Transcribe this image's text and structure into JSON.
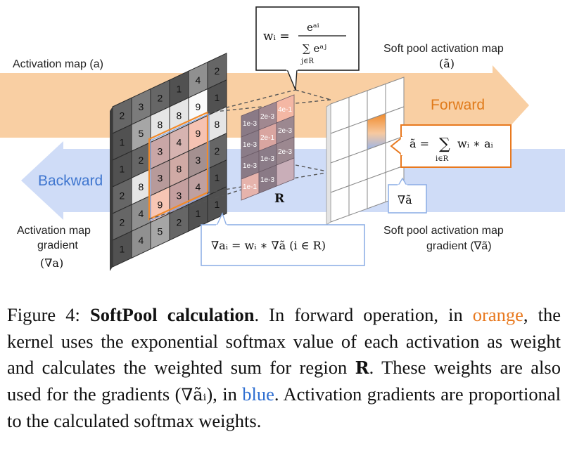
{
  "labels": {
    "activation_map": "Activation map (a)",
    "soft_pool_map": "Soft pool activation map",
    "soft_pool_map_symbol": "(ã)",
    "forward": "Forward",
    "backward": "Backward",
    "act_grad_line1": "Activation map",
    "act_grad_line2": "gradient",
    "act_grad_symbol": "(∇a)",
    "sp_grad_line1": "Soft pool activation map",
    "sp_grad_line2": "gradient (∇ã)",
    "region": "R",
    "grad_tilde": "∇ã"
  },
  "formulas": {
    "weight_lhs": "wᵢ =",
    "weight_num": "eᵃⁱ",
    "weight_den": "∑ eᵃʲ",
    "weight_den_sub": "j∈R",
    "pool_lhs": "ã =",
    "pool_sum": "∑",
    "pool_sub": "i∈R",
    "pool_rhs": "wᵢ ∗ aᵢ",
    "grad": "∇aᵢ = wᵢ ∗ ∇ã (i ∈ R)"
  },
  "activation_grid": [
    [
      "2",
      "3",
      "2",
      "1",
      "4",
      "2"
    ],
    [
      "1",
      "5",
      "8",
      "8",
      "9",
      "1"
    ],
    [
      "1",
      "2",
      "3",
      "4",
      "9",
      "8"
    ],
    [
      "2",
      "8",
      "3",
      "8",
      "3",
      "2"
    ],
    [
      "2",
      "4",
      "9",
      "3",
      "4",
      "1"
    ],
    [
      "1",
      "4",
      "5",
      "2",
      "1",
      "1"
    ]
  ],
  "weight_grid": [
    [
      "1e-3",
      "2e-3",
      "4e-1"
    ],
    [
      "1e-3",
      "2e-1",
      "2e-3"
    ],
    [
      "1e-3",
      "1e-3",
      "2e-3"
    ],
    [
      "1e-1",
      "1e-3",
      ""
    ]
  ],
  "colors": {
    "forward_band": "#f9cfa3",
    "backward_band": "#cfdcf7",
    "orange_accent": "#e8791f",
    "blue_accent": "#3b78d8",
    "blue_box": "#8fb0e6"
  },
  "caption": {
    "prefix": "Figure 4: ",
    "title": "SoftPool calculation",
    "t1": ".  In forward operation, in ",
    "orange_word": "orange",
    "t2": ", the kernel uses the exponential softmax value of each activation as weight and calculates the weighted sum for region ",
    "region": "R",
    "t3": ". These weights are also used for the gradients (",
    "grad_symbol": "∇ãᵢ",
    "t4": "), in ",
    "blue_word": "blue",
    "t5": ". Activation gradients are proportional to the calculated softmax weights."
  }
}
